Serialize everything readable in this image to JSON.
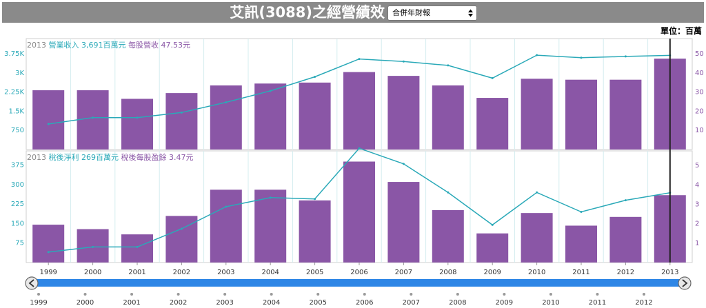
{
  "header": {
    "title": "艾訊(3088)之經營績效",
    "report_select": "合併年財報",
    "unit_label": "單位：百萬"
  },
  "colors": {
    "bar": "#8a56a6",
    "line": "#2aa9b8"
  },
  "chart_data": [
    {
      "type": "bar",
      "annotation": {
        "year": "2013",
        "line_text": "營業收入 3,691百萬元",
        "bar_text": "每股營收 47.53元"
      },
      "categories": [
        "1999",
        "2000",
        "2001",
        "2002",
        "2003",
        "2004",
        "2005",
        "2006",
        "2007",
        "2008",
        "2009",
        "2010",
        "2011",
        "2012",
        "2013"
      ],
      "series": [
        {
          "values": [
            1000,
            1250,
            1250,
            1450,
            1850,
            2300,
            2850,
            3550,
            3450,
            3300,
            2800,
            3700,
            3600,
            3650,
            3691
          ]
        },
        {
          "values": [
            31,
            31,
            26.5,
            29.5,
            33.5,
            34.5,
            35,
            40.5,
            38.5,
            33.5,
            27,
            37,
            36.5,
            36.5,
            47.53
          ]
        }
      ],
      "left_ticks": [
        "750",
        "1.5K",
        "2.25K",
        "3K",
        "3.75K"
      ],
      "left_tick_values": [
        750,
        1500,
        2250,
        3000,
        3750
      ],
      "right_ticks": [
        "10",
        "20",
        "30",
        "40",
        "50"
      ],
      "right_tick_values": [
        10,
        20,
        30,
        40,
        50
      ],
      "ylim_left": [
        0,
        4350
      ],
      "ylim_right": [
        0,
        58
      ]
    },
    {
      "type": "bar",
      "annotation": {
        "year": "2013",
        "line_text": "稅後淨利 269百萬元",
        "bar_text": "稅後每股盈餘 3.47元"
      },
      "categories": [
        "1999",
        "2000",
        "2001",
        "2002",
        "2003",
        "2004",
        "2005",
        "2006",
        "2007",
        "2008",
        "2009",
        "2010",
        "2011",
        "2012",
        "2013"
      ],
      "series": [
        {
          "values": [
            40,
            60,
            60,
            130,
            215,
            250,
            245,
            440,
            380,
            270,
            145,
            270,
            195,
            240,
            269
          ]
        },
        {
          "values": [
            1.95,
            1.72,
            1.45,
            2.4,
            3.75,
            3.75,
            3.2,
            5.2,
            4.15,
            2.7,
            1.5,
            2.55,
            1.9,
            2.35,
            3.47
          ]
        }
      ],
      "left_ticks": [
        "75",
        "150",
        "225",
        "300",
        "375"
      ],
      "left_tick_values": [
        75,
        150,
        225,
        300,
        375
      ],
      "right_ticks": [
        "1",
        "2",
        "3",
        "4",
        "5"
      ],
      "right_tick_values": [
        1,
        2,
        3,
        4,
        5
      ],
      "ylim_left": [
        0,
        430
      ],
      "ylim_right": [
        0,
        5.75
      ]
    }
  ],
  "navigator": {
    "years": [
      "1999",
      "2000",
      "2001",
      "2002",
      "2003",
      "2004",
      "2005",
      "2006",
      "2007",
      "2008",
      "2009",
      "2010",
      "2011",
      "2012"
    ],
    "left_arrow": "‹",
    "right_arrow": "›"
  }
}
